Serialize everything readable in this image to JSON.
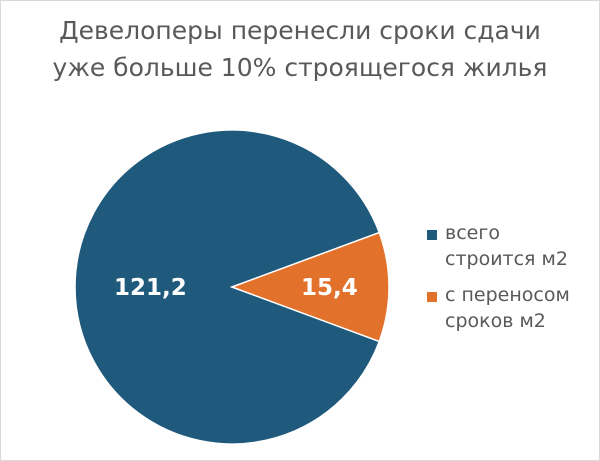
{
  "chart_data": {
    "type": "pie",
    "title_lines": [
      "Девелоперы перенесли сроки сдачи",
      "уже больше 10% строящегося жилья"
    ],
    "categories": [
      "всего строится м2",
      "с переносом сроков м2"
    ],
    "values": [
      121.2,
      15.4
    ],
    "value_labels": [
      "121,2",
      "15,4"
    ],
    "colors": [
      "#1f5a7d",
      "#e2712c"
    ],
    "legend_position": "right"
  }
}
